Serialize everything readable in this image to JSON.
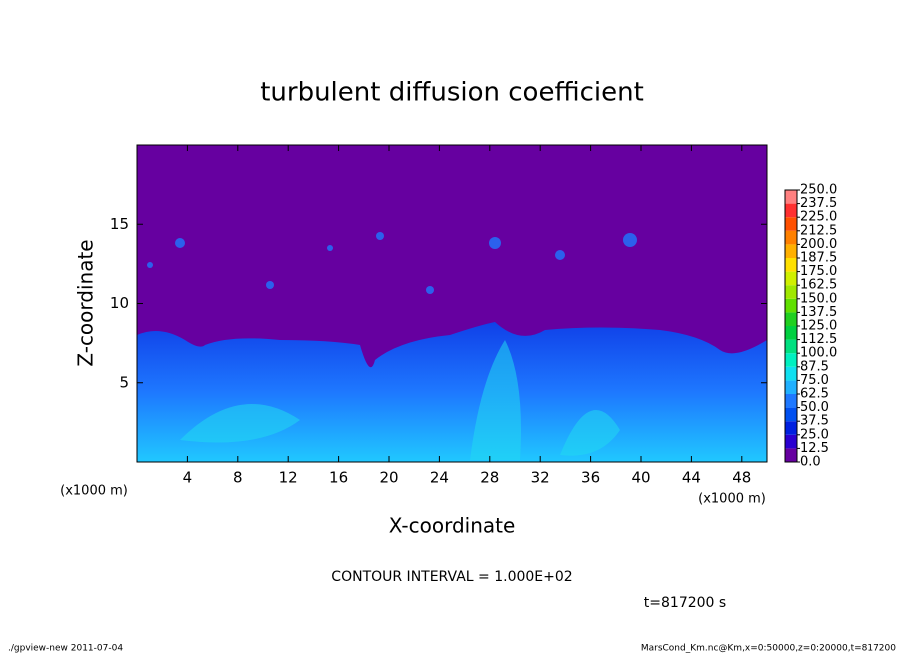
{
  "chart_data": {
    "type": "heatmap",
    "title": "turbulent diffusion coefficient",
    "xlabel": "X-coordinate",
    "ylabel": "Z-coordinate",
    "x_unit_labels": [
      "(x1000 m)",
      "(x1000 m)"
    ],
    "xlim": [
      0,
      50
    ],
    "ylim": [
      0,
      20
    ],
    "xticks": [
      4,
      8,
      12,
      16,
      20,
      24,
      28,
      32,
      36,
      40,
      44,
      48
    ],
    "yticks": [
      5,
      10,
      15
    ],
    "colorbar": {
      "levels": [
        {
          "value": 0,
          "label": "0.0"
        },
        12.5,
        {
          "value": 25,
          "label": "25.0"
        },
        37.5,
        {
          "value": 50,
          "label": "50.0"
        },
        62.5,
        {
          "value": 75,
          "label": "75.0"
        },
        87.5,
        {
          "value": 100,
          "label": "100.0"
        },
        112.5,
        {
          "value": 125,
          "label": "125.0"
        },
        137.5,
        {
          "value": 150,
          "label": "150.0"
        },
        162.5,
        {
          "value": 175,
          "label": "175.0"
        },
        187.5,
        {
          "value": 200,
          "label": "200.0"
        },
        212.5,
        {
          "value": 225,
          "label": "225.0"
        },
        237.5,
        {
          "value": 250,
          "label": "250.0"
        }
      ],
      "colors": [
        "#6600a0",
        "#2a00d0",
        "#0020e0",
        "#0050f0",
        "#1e78ff",
        "#20b0ff",
        "#10e0f0",
        "#00f0c0",
        "#00e080",
        "#00d040",
        "#20d020",
        "#60e000",
        "#a0e800",
        "#d0f000",
        "#ffe000",
        "#ffb000",
        "#ff8000",
        "#ff5000",
        "#ff3030",
        "#ff8080"
      ]
    },
    "contour_note": "CONTOUR INTERVAL = 1.000E+02",
    "time_label": "t=817200 s",
    "footer_left": "./gpview-new  2011-07-04",
    "footer_right": "MarsCond_Km.nc@Km,x=0:50000,z=0:20000,t=817200"
  }
}
